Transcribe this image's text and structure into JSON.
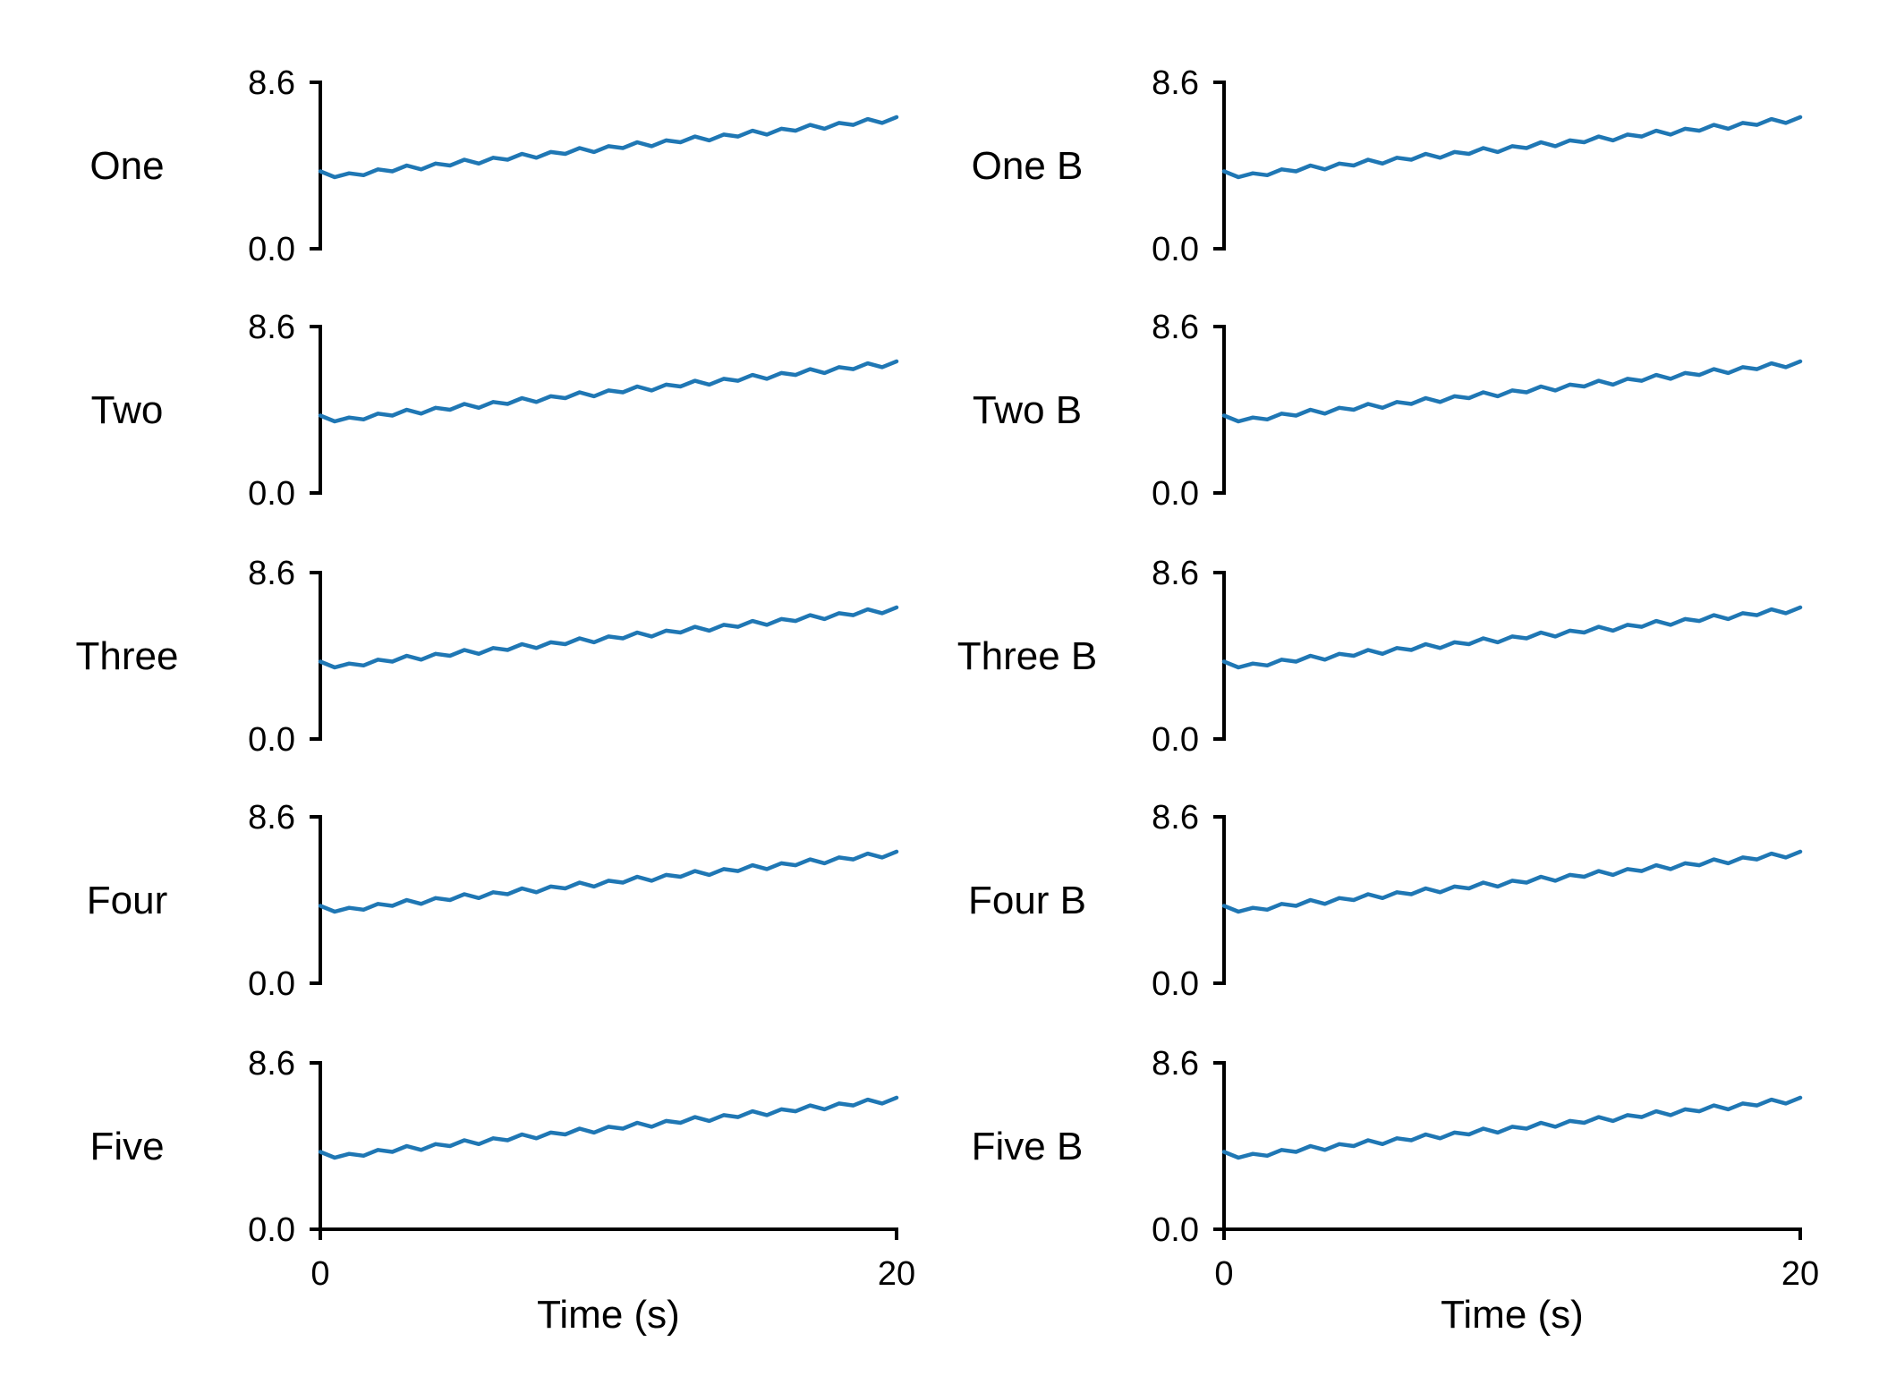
{
  "colors": {
    "trace": "#1f77b4",
    "axis": "#000000",
    "background": "#ffffff"
  },
  "chart_data": {
    "type": "line",
    "layout": "grid of 5 rows x 2 columns, shared x axis per column",
    "columns": [
      {
        "xlabel": "Time (s)",
        "xlim": [
          0,
          20
        ],
        "xticks": [
          "0",
          "20"
        ],
        "panels": [
          {
            "label": "One",
            "ylim": [
              0.0,
              8.6
            ],
            "yticks": [
              "0.0",
              "8.6"
            ]
          },
          {
            "label": "Two",
            "ylim": [
              0.0,
              8.6
            ],
            "yticks": [
              "0.0",
              "8.6"
            ]
          },
          {
            "label": "Three",
            "ylim": [
              0.0,
              8.6
            ],
            "yticks": [
              "0.0",
              "8.6"
            ]
          },
          {
            "label": "Four",
            "ylim": [
              0.0,
              8.6
            ],
            "yticks": [
              "0.0",
              "8.6"
            ]
          },
          {
            "label": "Five",
            "ylim": [
              0.0,
              8.6
            ],
            "yticks": [
              "0.0",
              "8.6"
            ]
          }
        ]
      },
      {
        "xlabel": "Time (s)",
        "xlim": [
          0,
          20
        ],
        "xticks": [
          "0",
          "20"
        ],
        "panels": [
          {
            "label": "One B",
            "ylim": [
              0.0,
              8.6
            ],
            "yticks": [
              "0.0",
              "8.6"
            ]
          },
          {
            "label": "Two B",
            "ylim": [
              0.0,
              8.6
            ],
            "yticks": [
              "0.0",
              "8.6"
            ]
          },
          {
            "label": "Three B",
            "ylim": [
              0.0,
              8.6
            ],
            "yticks": [
              "0.0",
              "8.6"
            ]
          },
          {
            "label": "Four B",
            "ylim": [
              0.0,
              8.6
            ],
            "yticks": [
              "0.0",
              "8.6"
            ]
          },
          {
            "label": "Five B",
            "ylim": [
              0.0,
              8.6
            ],
            "yticks": [
              "0.0",
              "8.6"
            ]
          }
        ]
      }
    ],
    "series": {
      "x": [
        0,
        0.5,
        1,
        1.5,
        2,
        2.5,
        3,
        3.5,
        4,
        4.5,
        5,
        5.5,
        6,
        6.5,
        7,
        7.5,
        8,
        8.5,
        9,
        9.5,
        10,
        10.5,
        11,
        11.5,
        12,
        12.5,
        13,
        13.5,
        14,
        14.5,
        15,
        15.5,
        16,
        16.5,
        17,
        17.5,
        18,
        18.5,
        19,
        19.5,
        20
      ],
      "y": [
        4.0,
        3.7,
        3.9,
        3.8,
        4.1,
        4.0,
        4.3,
        4.1,
        4.4,
        4.3,
        4.6,
        4.4,
        4.7,
        4.6,
        4.9,
        4.7,
        5.0,
        4.9,
        5.2,
        5.0,
        5.3,
        5.2,
        5.5,
        5.3,
        5.6,
        5.5,
        5.8,
        5.6,
        5.9,
        5.8,
        6.1,
        5.9,
        6.2,
        6.1,
        6.4,
        6.2,
        6.5,
        6.4,
        6.7,
        6.5,
        6.8
      ]
    }
  }
}
